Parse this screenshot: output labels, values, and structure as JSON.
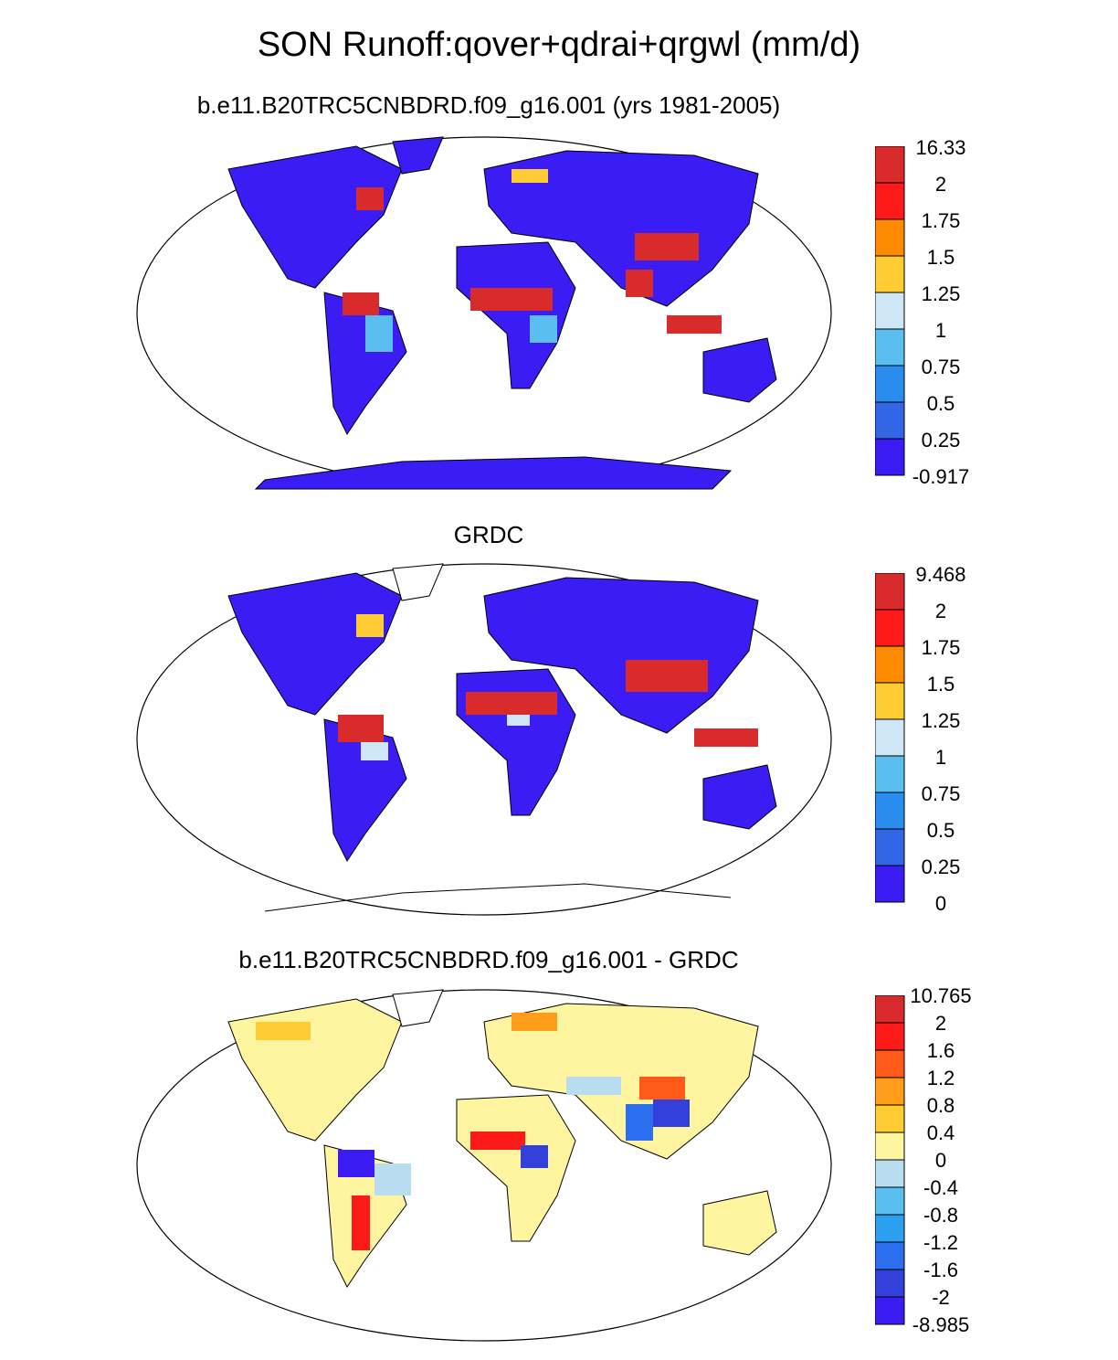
{
  "title": "SON Runoff:qover+qdrai+qrgwl (mm/d)",
  "panels": [
    {
      "subtitle": "b.e11.B20TRC5CNBDRD.f09_g16.001 (yrs 1981-2005)",
      "colorbar": {
        "labels": [
          "16.33",
          "2",
          "1.75",
          "1.5",
          "1.25",
          "1",
          "0.75",
          "0.5",
          "0.25",
          "-0.917"
        ],
        "colors": [
          "#d92b2b",
          "#ff1a1a",
          "#ff8c00",
          "#ffcc33",
          "#cfe6f7",
          "#5bbef0",
          "#2b8cf0",
          "#3366e6",
          "#3b1cf5"
        ]
      },
      "base_color": "#3b1cf5",
      "patches": [
        {
          "color": "#d92b2b",
          "shape": "south-asia"
        },
        {
          "color": "#d92b2b",
          "shape": "central-africa"
        },
        {
          "color": "#ff8c00",
          "shape": "east-china"
        }
      ],
      "antarctica": true
    },
    {
      "subtitle": "GRDC",
      "colorbar": {
        "labels": [
          "9.468",
          "2",
          "1.75",
          "1.5",
          "1.25",
          "1",
          "0.75",
          "0.5",
          "0.25",
          "0"
        ],
        "colors": [
          "#d92b2b",
          "#ff1a1a",
          "#ff8c00",
          "#ffcc33",
          "#cfe6f7",
          "#5bbef0",
          "#2b8cf0",
          "#3366e6",
          "#3b1cf5"
        ]
      },
      "base_color": "#3b1cf5",
      "antarctica": false
    },
    {
      "subtitle": "b.e11.B20TRC5CNBDRD.f09_g16.001 - GRDC",
      "colorbar": {
        "labels": [
          "10.765",
          "2",
          "1.6",
          "1.2",
          "0.8",
          "0.4",
          "0",
          "-0.4",
          "-0.8",
          "-1.2",
          "-1.6",
          "-2",
          "-8.985"
        ],
        "colors": [
          "#d92b2b",
          "#ff1a1a",
          "#ff5a1a",
          "#ff9c1a",
          "#ffcc33",
          "#fff5a0",
          "#b8dcf0",
          "#5bbef0",
          "#2ba0f0",
          "#2b6ef0",
          "#3340d9",
          "#3b1cf5"
        ]
      },
      "base_color": "#fff5a0",
      "antarctica": false
    }
  ]
}
